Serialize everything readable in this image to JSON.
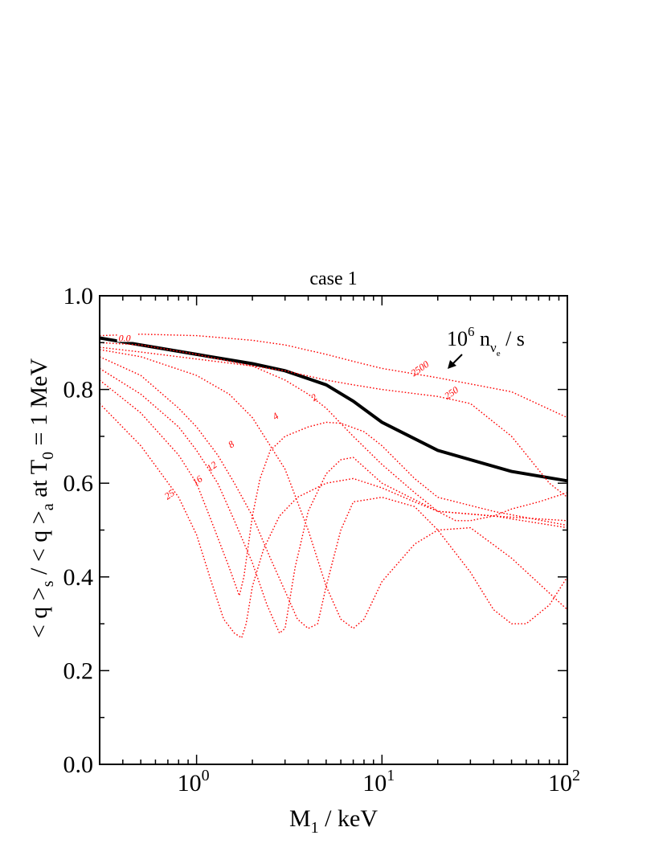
{
  "chart_data": {
    "type": "line",
    "title": "case 1",
    "xlabel": {
      "base": "M",
      "sub": "1",
      "rest": " / keV"
    },
    "ylabel": {
      "p1": "< q >",
      "s1": "s",
      "p2": " / < q >",
      "s2": "a",
      "p3": "  at T",
      "s3": "0",
      "p4": " = 1 MeV"
    },
    "xscale": "log",
    "xlim": [
      0.3,
      100
    ],
    "ylim": [
      0.0,
      1.0
    ],
    "yticks": [
      "0.0",
      "0.2",
      "0.4",
      "0.6",
      "0.8",
      "1.0"
    ],
    "xticks": [
      {
        "base": "10",
        "exp": "0"
      },
      {
        "base": "10",
        "exp": "1"
      },
      {
        "base": "10",
        "exp": "2"
      }
    ],
    "legend_note": {
      "coef": "10",
      "exp": "6",
      "n": " n",
      "nu": "ν",
      "e": "e",
      "rest": " / s"
    },
    "series": [
      {
        "name": "0.0",
        "color": "#000000",
        "style": "solid-thick",
        "x": [
          0.3,
          0.5,
          1,
          2,
          3,
          5,
          7,
          10,
          20,
          50,
          100
        ],
        "y": [
          0.91,
          0.895,
          0.875,
          0.855,
          0.84,
          0.81,
          0.775,
          0.73,
          0.67,
          0.625,
          0.605
        ],
        "label_at": [
          0.38,
          0.91
        ]
      },
      {
        "name": "2500",
        "color": "#ff0000",
        "style": "dotted",
        "x": [
          0.3,
          0.5,
          1,
          2,
          3,
          5,
          7,
          10,
          20,
          50,
          100
        ],
        "y": [
          0.915,
          0.918,
          0.915,
          0.905,
          0.895,
          0.875,
          0.86,
          0.845,
          0.825,
          0.795,
          0.74
        ],
        "label_at": [
          14.5,
          0.833
        ]
      },
      {
        "name": "250",
        "color": "#ff0000",
        "style": "dotted",
        "x": [
          0.3,
          0.5,
          1,
          2,
          3,
          5,
          7,
          10,
          20,
          30,
          50,
          80,
          100
        ],
        "y": [
          0.89,
          0.88,
          0.865,
          0.85,
          0.84,
          0.82,
          0.81,
          0.8,
          0.785,
          0.77,
          0.7,
          0.6,
          0.57
        ],
        "label_at": [
          22,
          0.784
        ]
      },
      {
        "name": "2",
        "color": "#ff0000",
        "style": "dotted",
        "x": [
          0.3,
          0.5,
          1,
          2,
          3,
          4,
          5,
          7,
          10,
          15,
          20,
          25,
          30,
          40,
          50,
          70,
          100
        ],
        "y": [
          0.9,
          0.895,
          0.875,
          0.85,
          0.82,
          0.79,
          0.76,
          0.7,
          0.64,
          0.58,
          0.54,
          0.52,
          0.52,
          0.53,
          0.545,
          0.56,
          0.58
        ],
        "label_at": [
          4.2,
          0.78
        ]
      },
      {
        "name": "4",
        "color": "#ff0000",
        "style": "dotted",
        "x": [
          0.3,
          0.5,
          1,
          1.5,
          2,
          3,
          4,
          5,
          6,
          7,
          8,
          10,
          15,
          20,
          30,
          50,
          100
        ],
        "y": [
          0.885,
          0.87,
          0.83,
          0.79,
          0.74,
          0.63,
          0.5,
          0.38,
          0.31,
          0.29,
          0.31,
          0.39,
          0.47,
          0.5,
          0.505,
          0.44,
          0.33
        ],
        "label_at": [
          2.6,
          0.74
        ]
      },
      {
        "name": "8",
        "color": "#ff0000",
        "style": "dotted",
        "x": [
          0.3,
          0.5,
          0.8,
          1,
          1.3,
          1.6,
          2,
          2.5,
          3,
          3.5,
          4,
          4.5,
          5,
          6,
          7,
          10,
          15,
          20,
          30,
          40,
          50,
          60,
          80,
          100
        ],
        "y": [
          0.87,
          0.83,
          0.76,
          0.72,
          0.66,
          0.6,
          0.53,
          0.44,
          0.37,
          0.31,
          0.29,
          0.3,
          0.38,
          0.5,
          0.56,
          0.57,
          0.55,
          0.5,
          0.41,
          0.33,
          0.3,
          0.3,
          0.34,
          0.4
        ],
        "label_at": [
          1.5,
          0.68
        ]
      },
      {
        "name": "12",
        "color": "#ff0000",
        "style": "dotted",
        "x": [
          0.3,
          0.5,
          0.8,
          1,
          1.3,
          1.6,
          2,
          2.4,
          2.8,
          3,
          3.4,
          4,
          5,
          6,
          7,
          10,
          20,
          40,
          100
        ],
        "y": [
          0.845,
          0.79,
          0.72,
          0.67,
          0.6,
          0.52,
          0.43,
          0.34,
          0.28,
          0.29,
          0.42,
          0.54,
          0.62,
          0.65,
          0.655,
          0.6,
          0.54,
          0.53,
          0.52
        ],
        "label_at": [
          1.15,
          0.63
        ]
      },
      {
        "name": "16",
        "color": "#ff0000",
        "style": "dotted",
        "x": [
          0.3,
          0.5,
          0.8,
          1,
          1.2,
          1.5,
          1.7,
          1.8,
          2,
          2.2,
          2.5,
          3,
          4,
          5,
          6,
          8,
          10,
          15,
          20,
          40,
          100
        ],
        "y": [
          0.82,
          0.75,
          0.66,
          0.6,
          0.52,
          0.42,
          0.36,
          0.4,
          0.53,
          0.61,
          0.67,
          0.7,
          0.72,
          0.73,
          0.728,
          0.71,
          0.68,
          0.61,
          0.57,
          0.54,
          0.51
        ],
        "label_at": [
          0.96,
          0.6
        ]
      },
      {
        "name": "25",
        "color": "#ff0000",
        "style": "dotted",
        "x": [
          0.3,
          0.5,
          0.8,
          1,
          1.2,
          1.4,
          1.6,
          1.75,
          1.85,
          2,
          2.3,
          2.8,
          3.5,
          5,
          7,
          10,
          15,
          20,
          40,
          100
        ],
        "y": [
          0.77,
          0.68,
          0.57,
          0.49,
          0.39,
          0.31,
          0.28,
          0.27,
          0.3,
          0.38,
          0.46,
          0.53,
          0.57,
          0.6,
          0.61,
          0.59,
          0.56,
          0.54,
          0.53,
          0.505
        ],
        "label_at": [
          0.68,
          0.57
        ]
      }
    ]
  }
}
